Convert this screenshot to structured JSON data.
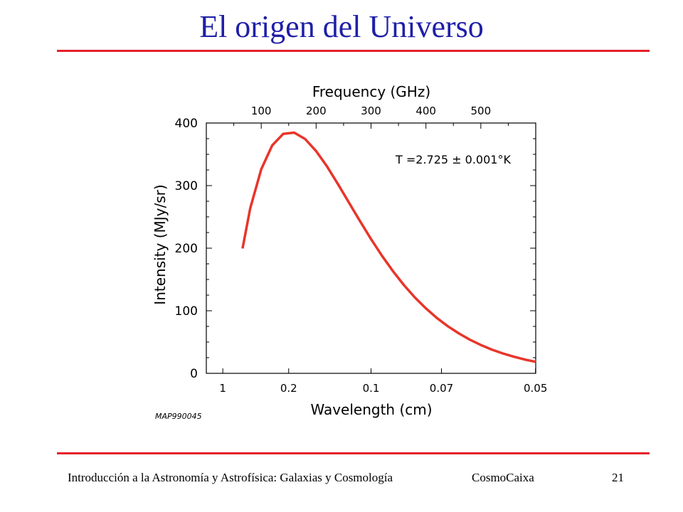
{
  "slide": {
    "title": "El origen del Universo",
    "footer_left": "Introducción a la Astronomía y Astrofísica: Galaxias y Cosmología",
    "footer_center": "CosmoCaixa",
    "page_number": "21"
  },
  "colors": {
    "title": "#1f1fa8",
    "rule": "#e4202a",
    "curve": "#e8352a"
  },
  "chart_data": {
    "type": "line",
    "title": "",
    "xlabel": "Wavelength (cm)",
    "x2label": "Frequency (GHz)",
    "ylabel": "Intensity (MJy/sr)",
    "x_unit": "GHz",
    "xlim": [
      0,
      600
    ],
    "ylim": [
      0,
      400
    ],
    "y_ticks": [
      "0",
      "100",
      "200",
      "300",
      "400"
    ],
    "y_tick_values": [
      0,
      100,
      200,
      300,
      400
    ],
    "top_ticks": [
      "100",
      "200",
      "300",
      "400",
      "500"
    ],
    "top_tick_values": [
      100,
      200,
      300,
      400,
      500
    ],
    "bottom_ticks": [
      "1",
      "0.2",
      "0.1",
      "0.07",
      "0.05"
    ],
    "bottom_tick_values": [
      30,
      150,
      300,
      428.3,
      599.6
    ],
    "annotation": "T =2.725 ± 0.001°K",
    "credit": "MAP990045",
    "grid": false,
    "series": [
      {
        "x": [
          66,
          80,
          100,
          120,
          140,
          160,
          180,
          200,
          220,
          240,
          260,
          280,
          300,
          320,
          340,
          360,
          380,
          400,
          420,
          440,
          460,
          480,
          500,
          520,
          540,
          560,
          580,
          600
        ],
        "y": [
          199.5,
          263.8,
          326.1,
          364.2,
          382.6,
          384.7,
          374.4,
          355.2,
          330.3,
          302.1,
          272.6,
          243.1,
          214.6,
          187.8,
          163.2,
          140.9,
          121.1,
          103.7,
          88.4,
          75.2,
          63.7,
          53.8,
          45.3,
          38.0,
          31.8,
          26.6,
          22.1,
          18.4
        ]
      }
    ]
  }
}
